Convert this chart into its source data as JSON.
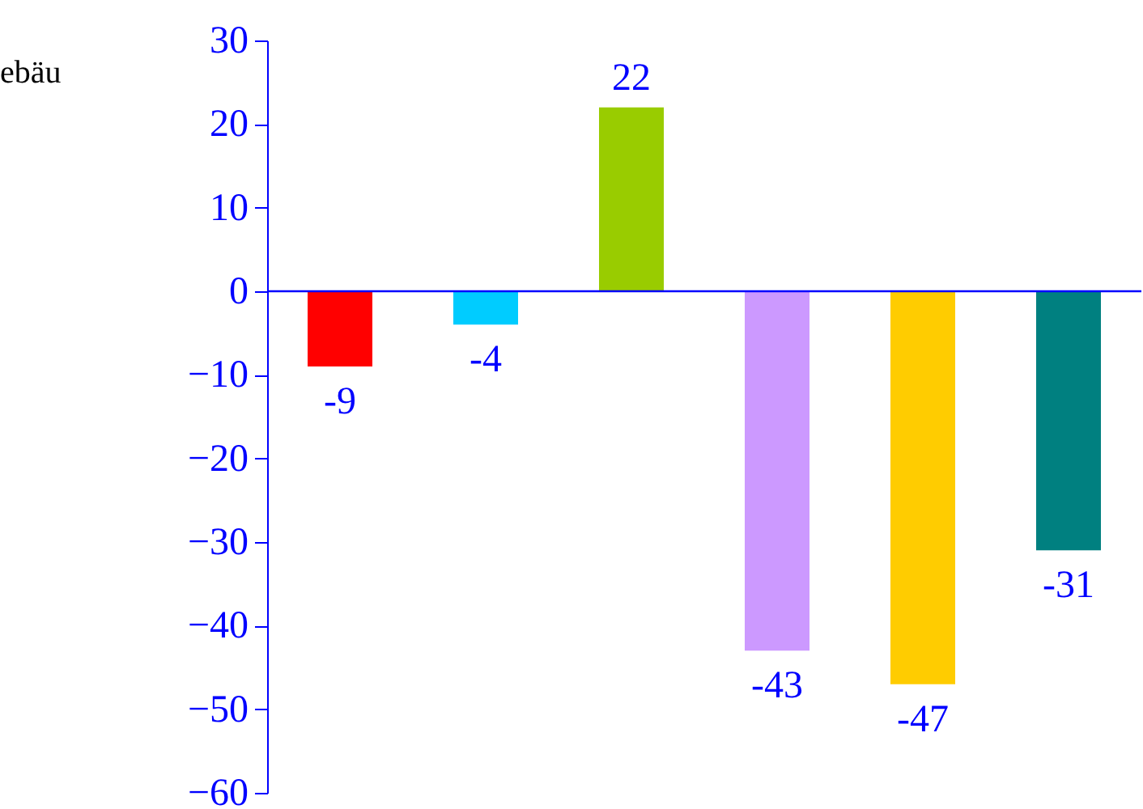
{
  "chart_data": {
    "type": "bar",
    "categories": [
      null,
      null,
      null,
      null,
      null,
      null
    ],
    "values": [
      -9,
      -4,
      22,
      -43,
      -47,
      -31
    ],
    "colors": [
      "#ff0000",
      "#00ccff",
      "#99cc00",
      "#cc99ff",
      "#ffcc00",
      "#008080"
    ],
    "ylim": [
      -60,
      30
    ],
    "yticks": [
      -60,
      -50,
      -40,
      -30,
      -20,
      -10,
      0,
      10,
      20,
      30
    ],
    "data_labels": true,
    "grid": false,
    "ref_lines": [
      {
        "axis": "y",
        "value": 0,
        "color": "#0000ff"
      }
    ],
    "annotations": [
      "ebäu"
    ]
  }
}
